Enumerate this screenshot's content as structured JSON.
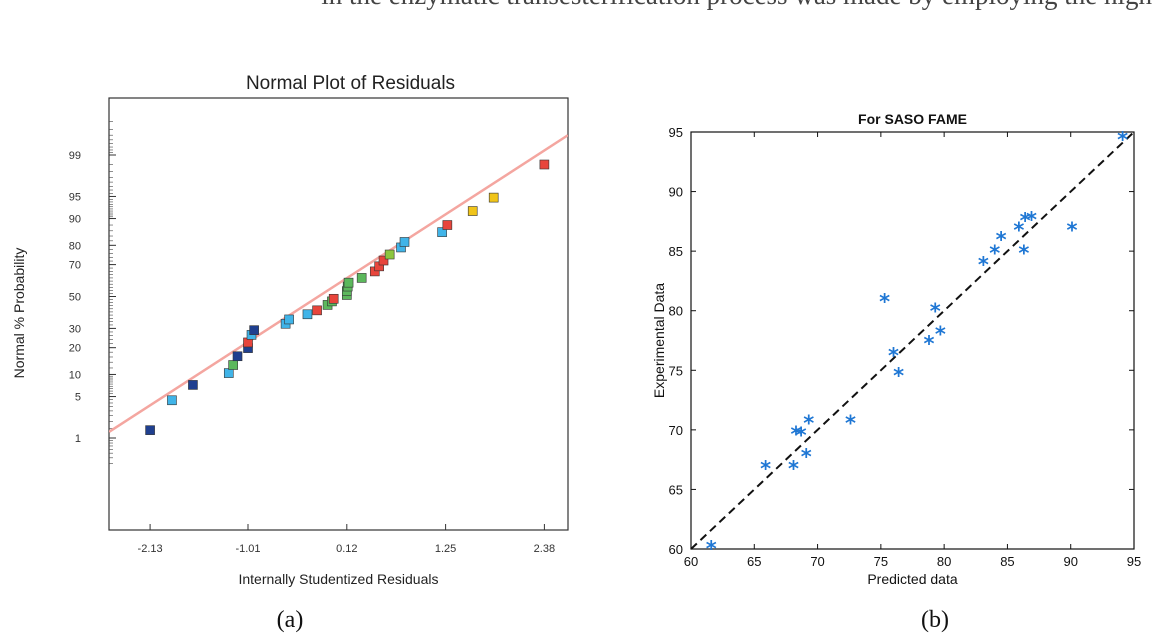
{
  "header_text": "in the enzymatic transesterification process was made by employing the high-",
  "chart_data": [
    {
      "type": "scatter",
      "panel_label": "(a)",
      "title": "Normal Plot of Residuals",
      "xlabel": "Internally Studentized Residuals",
      "ylabel": "Normal % Probability",
      "x_ticks": [
        "-2.13",
        "-1.01",
        "0.12",
        "1.25",
        "2.38"
      ],
      "x_tick_values": [
        -2.13,
        -1.01,
        0.12,
        1.25,
        2.38
      ],
      "y_ticks": [
        "1",
        "5",
        "10",
        "20",
        "30",
        "50",
        "70",
        "80",
        "90",
        "95",
        "99"
      ],
      "y_tick_values": [
        1,
        5,
        10,
        20,
        30,
        50,
        70,
        80,
        90,
        95,
        99
      ],
      "xlim": [
        -2.6,
        2.65
      ],
      "y_scale": "normal-probability",
      "ylim_percent": [
        0.2,
        99.9
      ],
      "fit_line": {
        "x": [
          -2.6,
          2.65
        ],
        "y": [
          1.3,
          99.6
        ],
        "color": "#f4a6a0"
      },
      "points": [
        {
          "x": -2.13,
          "y": 1.4,
          "color": "#1f3f8f"
        },
        {
          "x": -1.88,
          "y": 4.4,
          "color": "#40b4e8"
        },
        {
          "x": -1.64,
          "y": 7.3,
          "color": "#1f3f8f"
        },
        {
          "x": -1.23,
          "y": 10.4,
          "color": "#40b4e8"
        },
        {
          "x": -1.18,
          "y": 13.0,
          "color": "#5cb85c"
        },
        {
          "x": -1.13,
          "y": 16.3,
          "color": "#1f3f8f"
        },
        {
          "x": -1.01,
          "y": 19.8,
          "color": "#1f3f8f"
        },
        {
          "x": -1.01,
          "y": 22.5,
          "color": "#e8453c"
        },
        {
          "x": -0.97,
          "y": 26.4,
          "color": "#40b4e8"
        },
        {
          "x": -0.94,
          "y": 29.0,
          "color": "#1f3f8f"
        },
        {
          "x": -0.58,
          "y": 32.7,
          "color": "#40b4e8"
        },
        {
          "x": -0.54,
          "y": 35.3,
          "color": "#40b4e8"
        },
        {
          "x": -0.33,
          "y": 38.5,
          "color": "#40b4e8"
        },
        {
          "x": -0.22,
          "y": 41.0,
          "color": "#e8453c"
        },
        {
          "x": -0.1,
          "y": 44.5,
          "color": "#5cb85c"
        },
        {
          "x": -0.05,
          "y": 46.8,
          "color": "#5cb85c"
        },
        {
          "x": -0.03,
          "y": 48.5,
          "color": "#e8453c"
        },
        {
          "x": 0.12,
          "y": 51.0,
          "color": "#5cb85c"
        },
        {
          "x": 0.12,
          "y": 53.5,
          "color": "#5cb85c"
        },
        {
          "x": 0.13,
          "y": 56.5,
          "color": "#5cb85c"
        },
        {
          "x": 0.14,
          "y": 59.0,
          "color": "#5cb85c"
        },
        {
          "x": 0.29,
          "y": 62.0,
          "color": "#5cb85c"
        },
        {
          "x": 0.44,
          "y": 66.0,
          "color": "#e8453c"
        },
        {
          "x": 0.49,
          "y": 69.0,
          "color": "#e8453c"
        },
        {
          "x": 0.54,
          "y": 72.3,
          "color": "#e8453c"
        },
        {
          "x": 0.61,
          "y": 75.5,
          "color": "#8cc63f"
        },
        {
          "x": 0.74,
          "y": 79.0,
          "color": "#40b4e8"
        },
        {
          "x": 0.78,
          "y": 81.5,
          "color": "#40b4e8"
        },
        {
          "x": 1.21,
          "y": 85.5,
          "color": "#40b4e8"
        },
        {
          "x": 1.27,
          "y": 88.0,
          "color": "#e8453c"
        },
        {
          "x": 1.56,
          "y": 92.0,
          "color": "#f0c419"
        },
        {
          "x": 1.8,
          "y": 94.8,
          "color": "#f0c419"
        },
        {
          "x": 2.38,
          "y": 98.5,
          "color": "#e8453c"
        }
      ]
    },
    {
      "type": "scatter",
      "panel_label": "(b)",
      "title": "For SASO FAME",
      "xlabel": "Predicted data",
      "ylabel": "Experimental Data",
      "xlim": [
        60,
        95
      ],
      "ylim": [
        60,
        95
      ],
      "x_ticks": [
        60,
        65,
        70,
        75,
        80,
        85,
        90,
        95
      ],
      "y_ticks": [
        60,
        65,
        70,
        75,
        80,
        85,
        90,
        95
      ],
      "marker": "*",
      "marker_color": "#1f77d4",
      "reference_line": {
        "x": [
          60,
          95
        ],
        "y": [
          60,
          95
        ],
        "style": "dashed"
      },
      "points": [
        {
          "x": 61.6,
          "y": 60.1
        },
        {
          "x": 65.9,
          "y": 66.8
        },
        {
          "x": 68.1,
          "y": 66.8
        },
        {
          "x": 68.3,
          "y": 69.7
        },
        {
          "x": 68.7,
          "y": 69.6
        },
        {
          "x": 69.1,
          "y": 67.8
        },
        {
          "x": 69.3,
          "y": 70.6
        },
        {
          "x": 72.6,
          "y": 70.6
        },
        {
          "x": 75.3,
          "y": 80.8
        },
        {
          "x": 76.0,
          "y": 76.3
        },
        {
          "x": 76.4,
          "y": 74.6
        },
        {
          "x": 78.8,
          "y": 77.3
        },
        {
          "x": 79.3,
          "y": 80.0
        },
        {
          "x": 79.7,
          "y": 78.1
        },
        {
          "x": 83.1,
          "y": 83.9
        },
        {
          "x": 84.0,
          "y": 84.9
        },
        {
          "x": 84.5,
          "y": 86.0
        },
        {
          "x": 85.9,
          "y": 86.8
        },
        {
          "x": 86.3,
          "y": 84.9
        },
        {
          "x": 86.4,
          "y": 87.6
        },
        {
          "x": 86.9,
          "y": 87.7
        },
        {
          "x": 90.1,
          "y": 86.8
        },
        {
          "x": 94.1,
          "y": 94.4
        }
      ]
    }
  ]
}
